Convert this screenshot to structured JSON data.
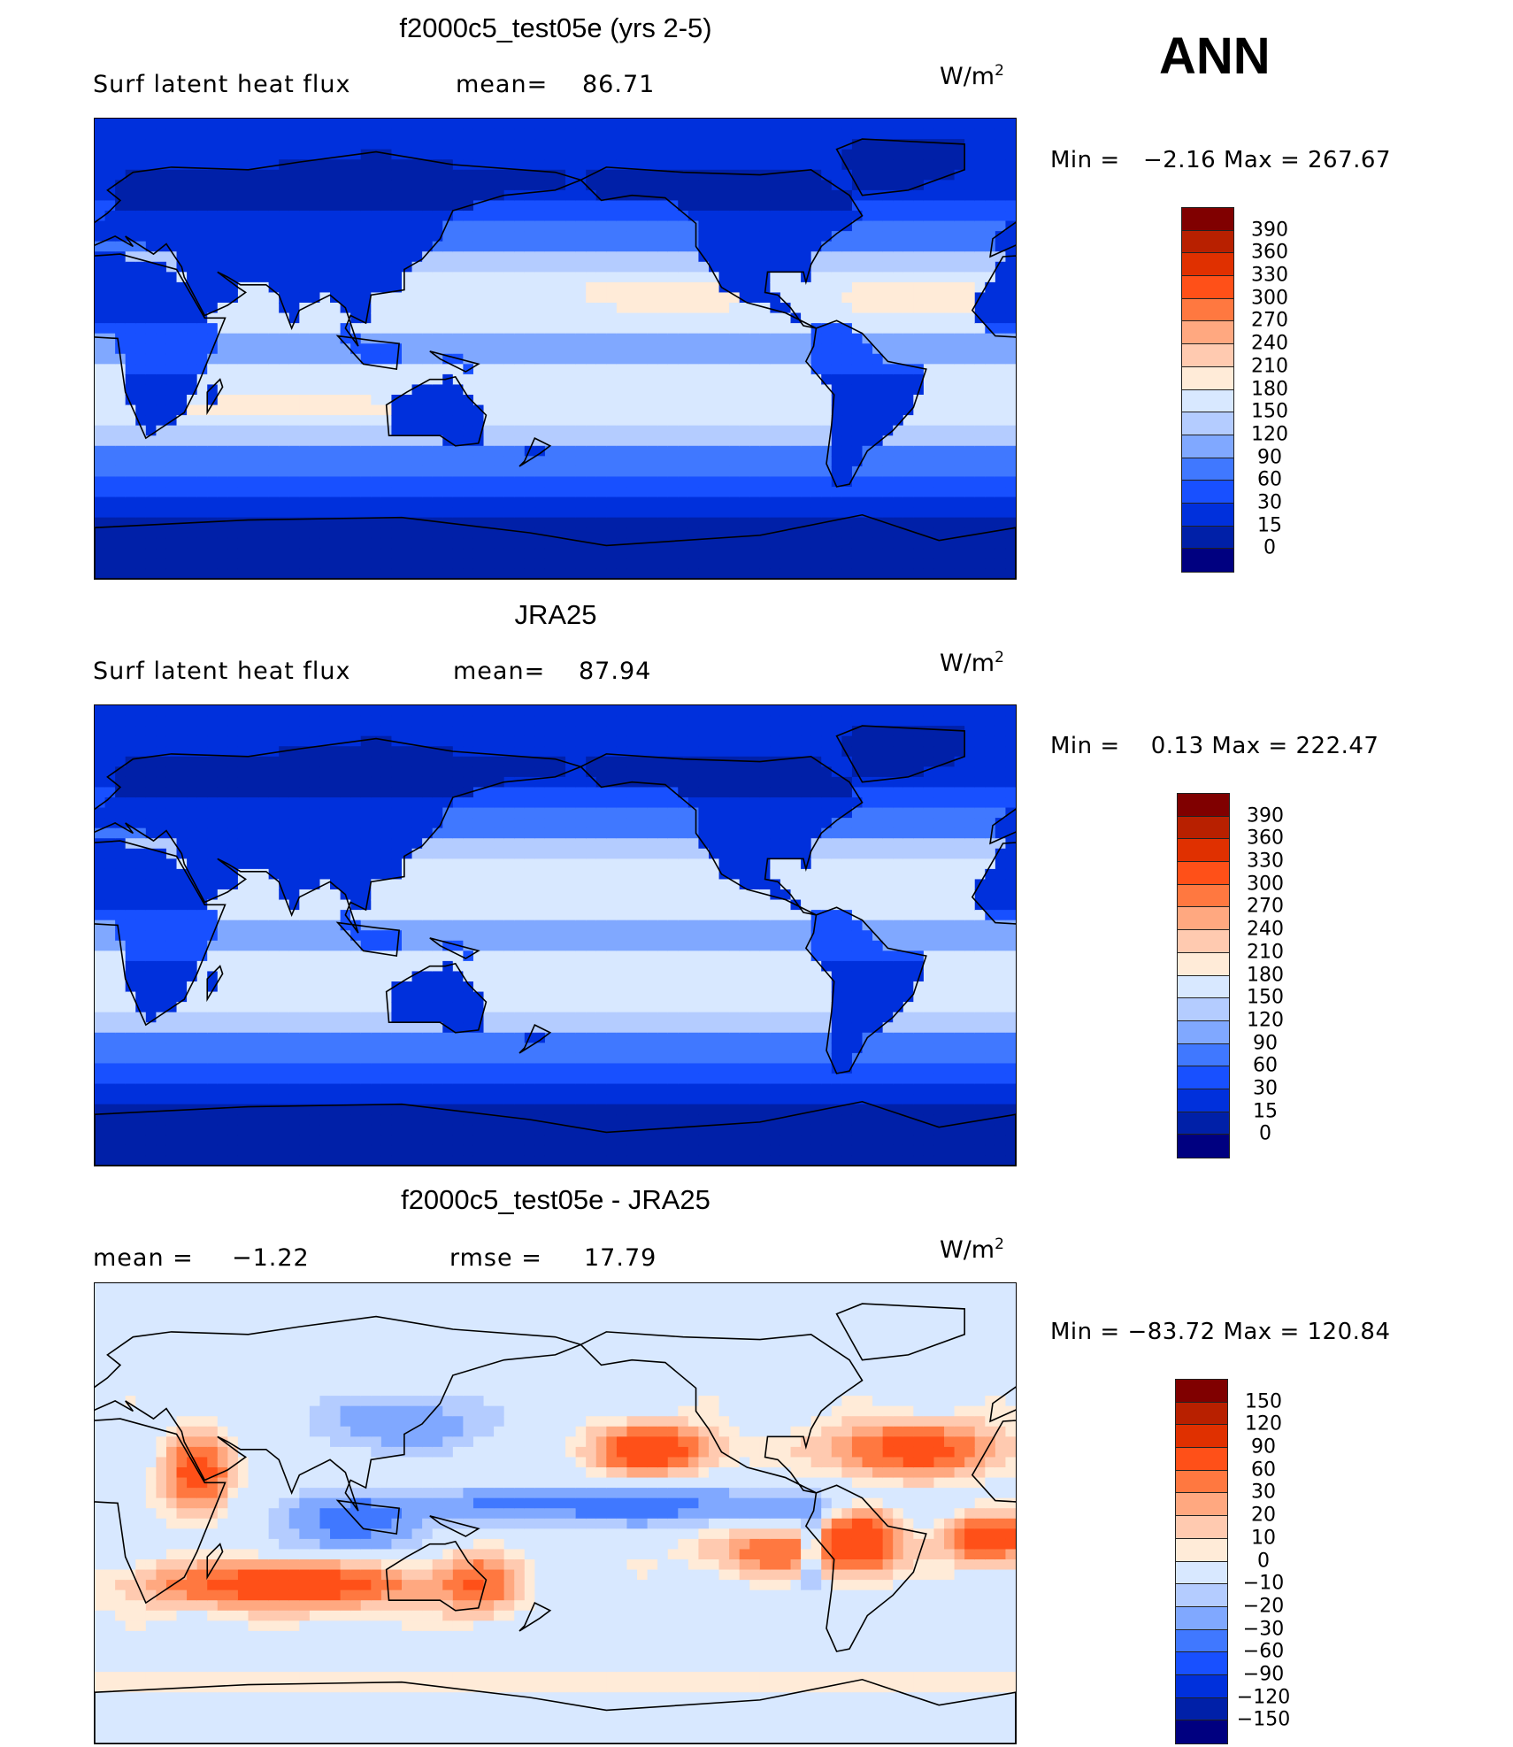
{
  "season": "ANN",
  "colors_main": [
    "#000080",
    "#0020a8",
    "#0030dc",
    "#1850ff",
    "#4078ff",
    "#80a8ff",
    "#b4ccff",
    "#d8e8ff",
    "#ffebd8",
    "#ffcab0",
    "#ffa880",
    "#ff7840",
    "#ff5018",
    "#e03000",
    "#b82000",
    "#800000"
  ],
  "chart_data": [
    {
      "type": "heatmap",
      "title": "f2000c5_test05e (yrs 2-5)",
      "variable": "Surf latent heat flux",
      "stat1_label": "mean=",
      "stat1_value": "86.71",
      "units": "W/m",
      "units_sup": "2",
      "min_label": "Min =",
      "min_value": "−2.16",
      "max_label": "Max =",
      "max_value": "267.67",
      "levels": [
        "390",
        "360",
        "330",
        "300",
        "270",
        "240",
        "210",
        "180",
        "150",
        "120",
        "90",
        "60",
        "30",
        "15",
        "0"
      ],
      "projection": "cylindrical equidistant, 0–360E"
    },
    {
      "type": "heatmap",
      "title": "JRA25",
      "variable": "Surf latent heat flux",
      "stat1_label": "mean=",
      "stat1_value": "87.94",
      "units": "W/m",
      "units_sup": "2",
      "min_label": "Min =",
      "min_value": "0.13",
      "max_label": "Max =",
      "max_value": "222.47",
      "levels": [
        "390",
        "360",
        "330",
        "300",
        "270",
        "240",
        "210",
        "180",
        "150",
        "120",
        "90",
        "60",
        "30",
        "15",
        "0"
      ],
      "projection": "cylindrical equidistant, 0–360E"
    },
    {
      "type": "heatmap",
      "title": "f2000c5_test05e - JRA25",
      "stat1_label": "mean =",
      "stat1_value": "−1.22",
      "stat2_label": "rmse =",
      "stat2_value": "17.79",
      "units": "W/m",
      "units_sup": "2",
      "min_label": "Min =",
      "min_value": "−83.72",
      "max_label": "Max =",
      "max_value": "120.84",
      "levels": [
        "150",
        "120",
        "90",
        "60",
        "30",
        "20",
        "10",
        "0",
        "−10",
        "−20",
        "−30",
        "−60",
        "−90",
        "−120",
        "−150"
      ],
      "projection": "cylindrical equidistant, 0–360E"
    }
  ]
}
